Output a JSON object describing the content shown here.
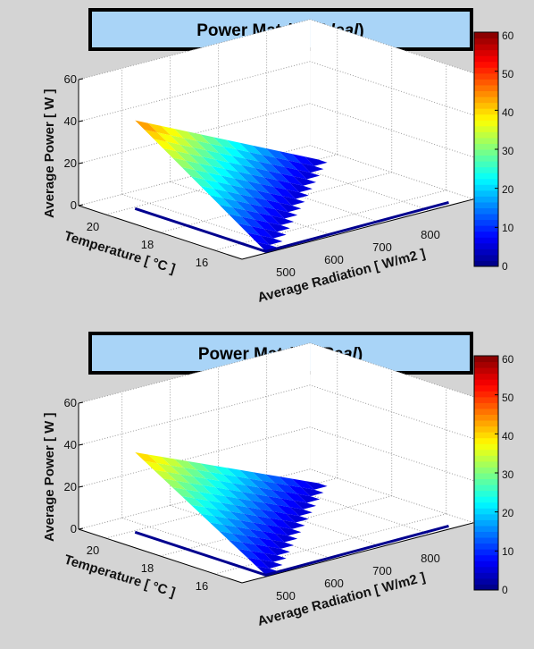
{
  "chart_data": [
    {
      "type": "surface",
      "title_main": "Power Matrix",
      "title_paren_open": "(",
      "title_variant": "Ideal",
      "title_paren_close": ")",
      "xlabel": "Average Radiation [ W/m2 ]",
      "ylabel": "Temperature [ °C ]",
      "zlabel": "Average Power [ W ]",
      "x_ticks": [
        "500",
        "600",
        "700",
        "800"
      ],
      "y_ticks": [
        "16",
        "18",
        "20"
      ],
      "z_ticks": [
        "0",
        "20",
        "40",
        "60"
      ],
      "zlim": [
        0,
        60
      ],
      "colorbar_ticks": [
        "0",
        "10",
        "20",
        "30",
        "40",
        "50",
        "60"
      ],
      "colorbar_range": [
        0,
        60
      ],
      "colormap": "jet",
      "peak_value": 42
    },
    {
      "type": "surface",
      "title_main": "Power Matrix",
      "title_paren_open": "(",
      "title_variant": "Real",
      "title_paren_close": ")",
      "xlabel": "Average Radiation [ W/m2 ]",
      "ylabel": "Temperature [ °C ]",
      "zlabel": "Average Power [ W ]",
      "x_ticks": [
        "500",
        "600",
        "700",
        "800"
      ],
      "y_ticks": [
        "16",
        "18",
        "20"
      ],
      "z_ticks": [
        "0",
        "20",
        "40",
        "60"
      ],
      "zlim": [
        0,
        60
      ],
      "colorbar_ticks": [
        "0",
        "10",
        "20",
        "30",
        "40",
        "50",
        "60"
      ],
      "colorbar_range": [
        0,
        60
      ],
      "colormap": "jet",
      "peak_value": 38
    }
  ]
}
